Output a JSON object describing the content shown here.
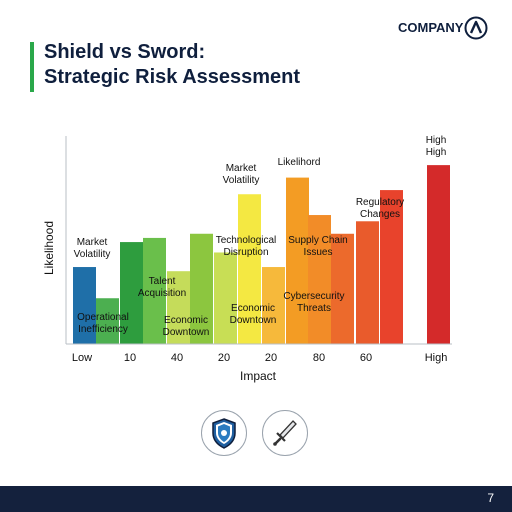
{
  "header": {
    "company": "COMPANY",
    "title_line1": "Shield vs Sword:",
    "title_line2": "Strategic Risk Assessment"
  },
  "footer": {
    "page_number": "7"
  },
  "icons": [
    "shield-icon",
    "sword-icon"
  ],
  "colors": {
    "accent": "#2aa84a",
    "navy": "#14213d"
  },
  "chart_data": {
    "type": "bar",
    "xlabel": "Impact",
    "ylabel": "Likelihood",
    "ylim": [
      0,
      100
    ],
    "x_tick_labels": [
      "Low",
      "10",
      "40",
      "20",
      "20",
      "80",
      "60",
      "High"
    ],
    "bars": [
      {
        "value": 37,
        "color": "#1f6fa8"
      },
      {
        "value": 22,
        "color": "#4caf50"
      },
      {
        "value": 49,
        "color": "#2e9d3e"
      },
      {
        "value": 51,
        "color": "#6abf4b"
      },
      {
        "value": 35,
        "color": "#c5dc5a"
      },
      {
        "value": 53,
        "color": "#8cc63f"
      },
      {
        "value": 44,
        "color": "#c8de55"
      },
      {
        "value": 72,
        "color": "#f4e842"
      },
      {
        "value": 37,
        "color": "#f6b93b"
      },
      {
        "value": 80,
        "color": "#f39c24"
      },
      {
        "value": 62,
        "color": "#f28c28"
      },
      {
        "value": 53,
        "color": "#ec6a2c"
      },
      {
        "value": 59,
        "color": "#e95b2c"
      },
      {
        "value": 74,
        "color": "#e8432c"
      },
      {
        "value": 86,
        "color": "#d42a2a"
      }
    ],
    "annotations": [
      {
        "lines": [
          "Market",
          "Volatility"
        ]
      },
      {
        "lines": [
          "Operational",
          "Inefficiency"
        ]
      },
      {
        "lines": [
          "Talent",
          "Acquisition"
        ]
      },
      {
        "lines": [
          "Economic",
          "Downtown"
        ]
      },
      {
        "lines": [
          "Market",
          "Volatility"
        ]
      },
      {
        "lines": [
          "Technological",
          "Disruption"
        ]
      },
      {
        "lines": [
          "Economic",
          "Downtown"
        ]
      },
      {
        "lines": [
          "Likelihord"
        ]
      },
      {
        "lines": [
          "Supply Chain",
          "Issues"
        ]
      },
      {
        "lines": [
          "Cybersecurity",
          "Threats"
        ]
      },
      {
        "lines": [
          "Regulatory",
          "Changes"
        ]
      },
      {
        "lines": [
          "High",
          "High"
        ]
      }
    ]
  }
}
